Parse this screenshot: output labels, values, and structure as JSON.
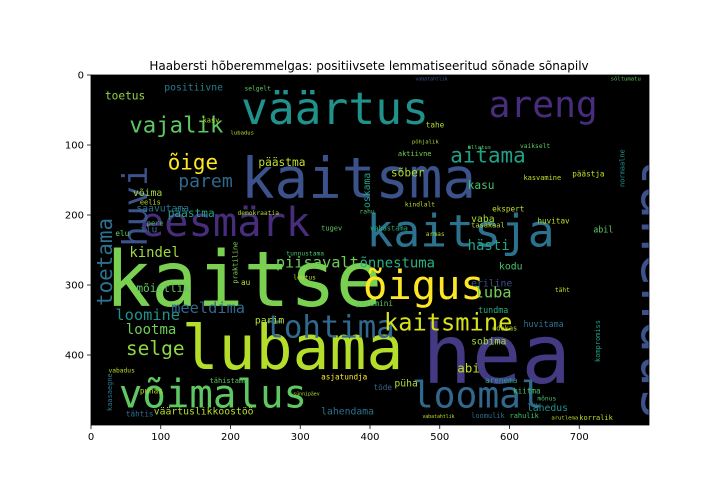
{
  "chart_data": {
    "type": "wordcloud",
    "title": "Haabersti hõberemmelgas: positiivsete lemmatiseeritud sõnade sõnapilv",
    "xlabel": "",
    "ylabel": "",
    "xlim": [
      0,
      800
    ],
    "ylim": [
      500,
      0
    ],
    "xticks": [
      0,
      100,
      200,
      300,
      400,
      500,
      600,
      700
    ],
    "yticks": [
      0,
      100,
      200,
      300,
      400
    ],
    "background": "#000000",
    "words": [
      {
        "text": "kaitse",
        "x": 20,
        "y": 330,
        "size": 110,
        "color": "#7ad151",
        "rot": 0
      },
      {
        "text": "hea",
        "x": 475,
        "y": 440,
        "size": 118,
        "color": "#443a83",
        "rot": 0
      },
      {
        "text": "lahendus",
        "x": 790,
        "y": 110,
        "size": 80,
        "color": "#3b528b",
        "rot": 90
      },
      {
        "text": "kaitsma",
        "x": 215,
        "y": 175,
        "size": 80,
        "color": "#3b528b",
        "rot": 0
      },
      {
        "text": "lubama",
        "x": 130,
        "y": 420,
        "size": 88,
        "color": "#b5de2b",
        "rot": 0
      },
      {
        "text": "väärtus",
        "x": 215,
        "y": 70,
        "size": 64,
        "color": "#21918c",
        "rot": 0
      },
      {
        "text": "kaitsja",
        "x": 395,
        "y": 245,
        "size": 64,
        "color": "#2c728e",
        "rot": 0
      },
      {
        "text": "eesmärk",
        "x": 70,
        "y": 230,
        "size": 58,
        "color": "#472d7b",
        "rot": 0
      },
      {
        "text": "õigus",
        "x": 390,
        "y": 320,
        "size": 58,
        "color": "#fde725",
        "rot": 0
      },
      {
        "text": "võimalus",
        "x": 40,
        "y": 475,
        "size": 56,
        "color": "#5ec962",
        "rot": 0
      },
      {
        "text": "areng",
        "x": 570,
        "y": 60,
        "size": 52,
        "color": "#472d7b",
        "rot": 0
      },
      {
        "text": "loomal",
        "x": 460,
        "y": 475,
        "size": 52,
        "color": "#31688e",
        "rot": 0
      },
      {
        "text": "tohtima",
        "x": 250,
        "y": 375,
        "size": 44,
        "color": "#31688e",
        "rot": 0
      },
      {
        "text": "huvi",
        "x": 80,
        "y": 245,
        "size": 48,
        "color": "#3b528b",
        "rot": 270
      },
      {
        "text": "kaitsmine",
        "x": 420,
        "y": 365,
        "size": 34,
        "color": "#d8e219",
        "rot": 0
      },
      {
        "text": "vajalik",
        "x": 55,
        "y": 82,
        "size": 32,
        "color": "#5ec962",
        "rot": 0
      },
      {
        "text": "aitama",
        "x": 515,
        "y": 125,
        "size": 30,
        "color": "#1fa187",
        "rot": 0
      },
      {
        "text": "toetama",
        "x": 30,
        "y": 330,
        "size": 30,
        "color": "#2c728e",
        "rot": 270
      },
      {
        "text": "õige",
        "x": 110,
        "y": 135,
        "size": 30,
        "color": "#fde725",
        "rot": 0
      },
      {
        "text": "parem",
        "x": 125,
        "y": 160,
        "size": 26,
        "color": "#31688e",
        "rot": 0
      },
      {
        "text": "selge",
        "x": 50,
        "y": 400,
        "size": 28,
        "color": "#90d743",
        "rot": 0
      },
      {
        "text": "loomine",
        "x": 35,
        "y": 350,
        "size": 22,
        "color": "#21918c",
        "rot": 0
      },
      {
        "text": "kindel",
        "x": 55,
        "y": 260,
        "size": 20,
        "color": "#9fda3a",
        "rot": 0
      },
      {
        "text": "piisavalt",
        "x": 265,
        "y": 275,
        "size": 22,
        "color": "#6ece58",
        "rot": 0
      },
      {
        "text": "õnnestuma",
        "x": 385,
        "y": 275,
        "size": 20,
        "color": "#29af7f",
        "rot": 0
      },
      {
        "text": "hästi",
        "x": 540,
        "y": 250,
        "size": 20,
        "color": "#20a386",
        "rot": 0
      },
      {
        "text": "luba",
        "x": 550,
        "y": 318,
        "size": 22,
        "color": "#73d056",
        "rot": 0
      },
      {
        "text": "meeldima",
        "x": 115,
        "y": 340,
        "size": 22,
        "color": "#31688e",
        "rot": 0
      },
      {
        "text": "lootma",
        "x": 50,
        "y": 370,
        "size": 20,
        "color": "#6ece58",
        "rot": 0
      },
      {
        "text": "mõistlik",
        "x": 65,
        "y": 310,
        "size": 16,
        "color": "#5ec962",
        "rot": 0
      },
      {
        "text": "toetus",
        "x": 20,
        "y": 35,
        "size": 16,
        "color": "#90d743",
        "rot": 0
      },
      {
        "text": "positiivne",
        "x": 105,
        "y": 22,
        "size": 14,
        "color": "#287c8e",
        "rot": 0
      },
      {
        "text": "võima",
        "x": 60,
        "y": 173,
        "size": 14,
        "color": "#9fda3a",
        "rot": 0
      },
      {
        "text": "päästma",
        "x": 240,
        "y": 130,
        "size": 16,
        "color": "#c0df25",
        "rot": 0
      },
      {
        "text": "päästma",
        "x": 110,
        "y": 203,
        "size": 16,
        "color": "#20a386",
        "rot": 0
      },
      {
        "text": "saavutama",
        "x": 65,
        "y": 195,
        "size": 14,
        "color": "#2c728e",
        "rot": 0
      },
      {
        "text": "ilu",
        "x": 70,
        "y": 225,
        "size": 14,
        "color": "#2c728e",
        "rot": 0
      },
      {
        "text": "sõber",
        "x": 430,
        "y": 145,
        "size": 16,
        "color": "#addc30",
        "rot": 0
      },
      {
        "text": "kasu",
        "x": 540,
        "y": 163,
        "size": 16,
        "color": "#48c16e",
        "rot": 0
      },
      {
        "text": "vaba",
        "x": 545,
        "y": 210,
        "size": 14,
        "color": "#a8db34",
        "rot": 0
      },
      {
        "text": "kodu",
        "x": 585,
        "y": 278,
        "size": 14,
        "color": "#48c16e",
        "rot": 0
      },
      {
        "text": "eriline",
        "x": 545,
        "y": 302,
        "size": 14,
        "color": "#3b528b",
        "rot": 0
      },
      {
        "text": "oskama",
        "x": 400,
        "y": 190,
        "size": 14,
        "color": "#1fa187",
        "rot": 270
      },
      {
        "text": "tundma",
        "x": 555,
        "y": 340,
        "size": 12,
        "color": "#29af7f",
        "rot": 0
      },
      {
        "text": "sobima",
        "x": 545,
        "y": 385,
        "size": 14,
        "color": "#9fda3a",
        "rot": 0
      },
      {
        "text": "abi",
        "x": 525,
        "y": 425,
        "size": 18,
        "color": "#c0df25",
        "rot": 0
      },
      {
        "text": "abil",
        "x": 720,
        "y": 225,
        "size": 12,
        "color": "#5ec962",
        "rot": 0
      },
      {
        "text": "parim",
        "x": 235,
        "y": 355,
        "size": 14,
        "color": "#b5de2b",
        "rot": 0
      },
      {
        "text": "paremini",
        "x": 380,
        "y": 330,
        "size": 11,
        "color": "#5ec962",
        "rot": 0
      },
      {
        "text": "väärtuslikkoostöö",
        "x": 90,
        "y": 485,
        "size": 14,
        "color": "#b5de2b",
        "rot": 0
      },
      {
        "text": "lahendama",
        "x": 330,
        "y": 485,
        "size": 14,
        "color": "#2c728e",
        "rot": 0
      },
      {
        "text": "püha",
        "x": 435,
        "y": 445,
        "size": 14,
        "color": "#addc30",
        "rot": 0
      },
      {
        "text": "arenema",
        "x": 565,
        "y": 440,
        "size": 11,
        "color": "#1fa187",
        "rot": 0
      },
      {
        "text": "kiitma",
        "x": 605,
        "y": 455,
        "size": 11,
        "color": "#48c16e",
        "rot": 0
      },
      {
        "text": "lähedus",
        "x": 625,
        "y": 480,
        "size": 14,
        "color": "#21918c",
        "rot": 0
      },
      {
        "text": "huvitama",
        "x": 620,
        "y": 360,
        "size": 12,
        "color": "#2c728e",
        "rot": 0
      },
      {
        "text": "huvitav",
        "x": 640,
        "y": 212,
        "size": 11,
        "color": "#b5de2b",
        "rot": 0
      },
      {
        "text": "ekspert",
        "x": 575,
        "y": 195,
        "size": 11,
        "color": "#c0df25",
        "rot": 0
      },
      {
        "text": "tugev",
        "x": 330,
        "y": 222,
        "size": 10,
        "color": "#5ec962",
        "rot": 0
      },
      {
        "text": "vabastama",
        "x": 400,
        "y": 222,
        "size": 10,
        "color": "#29af7f",
        "rot": 0
      },
      {
        "text": "tasakaal",
        "x": 545,
        "y": 218,
        "size": 10,
        "color": "#c0df25",
        "rot": 0
      },
      {
        "text": "edukas",
        "x": 575,
        "y": 365,
        "size": 10,
        "color": "#c0df25",
        "rot": 0
      },
      {
        "text": "tõde",
        "x": 405,
        "y": 450,
        "size": 11,
        "color": "#31688e",
        "rot": 0
      },
      {
        "text": "puhas",
        "x": 70,
        "y": 455,
        "size": 11,
        "color": "#b5de2b",
        "rot": 0
      },
      {
        "text": "tähtis",
        "x": 50,
        "y": 488,
        "size": 11,
        "color": "#2c728e",
        "rot": 0
      },
      {
        "text": "asjatundja",
        "x": 330,
        "y": 435,
        "size": 11,
        "color": "#fde725",
        "rot": 0
      },
      {
        "text": "tähistama",
        "x": 170,
        "y": 440,
        "size": 10,
        "color": "#5ec962",
        "rot": 0
      },
      {
        "text": "päästja",
        "x": 690,
        "y": 145,
        "size": 11,
        "color": "#c0df25",
        "rot": 0
      },
      {
        "text": "kasvamine",
        "x": 620,
        "y": 150,
        "size": 10,
        "color": "#c0df25",
        "rot": 0
      },
      {
        "text": "aktiivne",
        "x": 440,
        "y": 116,
        "size": 10,
        "color": "#73d056",
        "rot": 0
      },
      {
        "text": "tahe",
        "x": 480,
        "y": 75,
        "size": 11,
        "color": "#addc30",
        "rot": 0
      },
      {
        "text": "praktiline",
        "x": 210,
        "y": 298,
        "size": 10,
        "color": "#7ad151",
        "rot": 270
      },
      {
        "text": "au",
        "x": 215,
        "y": 300,
        "size": 11,
        "color": "#c0df25",
        "rot": 0
      },
      {
        "text": "elu",
        "x": 35,
        "y": 230,
        "size": 11,
        "color": "#5ec962",
        "rot": 0
      },
      {
        "text": "eelis",
        "x": 70,
        "y": 185,
        "size": 10,
        "color": "#c0df25",
        "rot": 0
      },
      {
        "text": "pere",
        "x": 80,
        "y": 215,
        "size": 10,
        "color": "#48c16e",
        "rot": 0
      },
      {
        "text": "normaalne",
        "x": 765,
        "y": 160,
        "size": 10,
        "color": "#21918c",
        "rot": 270
      },
      {
        "text": "kompromiss",
        "x": 730,
        "y": 410,
        "size": 10,
        "color": "#1fa187",
        "rot": 270
      },
      {
        "text": "vabadus",
        "x": 25,
        "y": 425,
        "size": 9,
        "color": "#c0df25",
        "rot": 0
      },
      {
        "text": "demokraatia",
        "x": 210,
        "y": 200,
        "size": 9,
        "color": "#addc30",
        "rot": 0
      },
      {
        "text": "kaasaegne",
        "x": 30,
        "y": 480,
        "size": 10,
        "color": "#2c728e",
        "rot": 270
      },
      {
        "text": "korralik",
        "x": 700,
        "y": 493,
        "size": 10,
        "color": "#c0df25",
        "rot": 0
      },
      {
        "text": "loomulik",
        "x": 545,
        "y": 490,
        "size": 10,
        "color": "#2c728e",
        "rot": 0
      },
      {
        "text": "rahulik",
        "x": 600,
        "y": 490,
        "size": 10,
        "color": "#48c16e",
        "rot": 0
      },
      {
        "text": "mõnus",
        "x": 640,
        "y": 465,
        "size": 9,
        "color": "#48c16e",
        "rot": 0
      },
      {
        "text": "armas",
        "x": 480,
        "y": 230,
        "size": 9,
        "color": "#addc30",
        "rot": 0
      },
      {
        "text": "selgelt",
        "x": 220,
        "y": 22,
        "size": 9,
        "color": "#5ec962",
        "rot": 0
      },
      {
        "text": "kasv",
        "x": 160,
        "y": 68,
        "size": 10,
        "color": "#c0df25",
        "rot": 0
      },
      {
        "text": "lootus",
        "x": 290,
        "y": 292,
        "size": 9,
        "color": "#c0df25",
        "rot": 0
      },
      {
        "text": "tunnustama",
        "x": 280,
        "y": 258,
        "size": 9,
        "color": "#48c16e",
        "rot": 0
      },
      {
        "text": "täht",
        "x": 665,
        "y": 310,
        "size": 9,
        "color": "#c0df25",
        "rot": 0
      },
      {
        "text": "rahu",
        "x": 385,
        "y": 198,
        "size": 9,
        "color": "#48c16e",
        "rot": 0
      },
      {
        "text": "kindlalt",
        "x": 450,
        "y": 188,
        "size": 9,
        "color": "#c0df25",
        "rot": 0
      },
      {
        "text": "lubadus",
        "x": 200,
        "y": 85,
        "size": 8,
        "color": "#c0df25",
        "rot": 0
      },
      {
        "text": "sõltumatu",
        "x": 745,
        "y": 8,
        "size": 8,
        "color": "#5ec962",
        "rot": 0
      },
      {
        "text": "vabatahtlik",
        "x": 465,
        "y": 8,
        "size": 7,
        "color": "#3b528b",
        "rot": 0
      },
      {
        "text": "vabatahtlik",
        "x": 475,
        "y": 490,
        "size": 7,
        "color": "#c0df25",
        "rot": 0
      },
      {
        "text": "põhjalik",
        "x": 460,
        "y": 98,
        "size": 8,
        "color": "#addc30",
        "rot": 0
      },
      {
        "text": "üllatus",
        "x": 540,
        "y": 106,
        "size": 8,
        "color": "#5ec962",
        "rot": 0
      },
      {
        "text": "vaikselt",
        "x": 615,
        "y": 104,
        "size": 9,
        "color": "#5ec962",
        "rot": 0
      },
      {
        "text": "arutlema",
        "x": 660,
        "y": 492,
        "size": 8,
        "color": "#c0df25",
        "rot": 0
      },
      {
        "text": "sünnipäev",
        "x": 290,
        "y": 458,
        "size": 7,
        "color": "#addc30",
        "rot": 0
      }
    ]
  }
}
